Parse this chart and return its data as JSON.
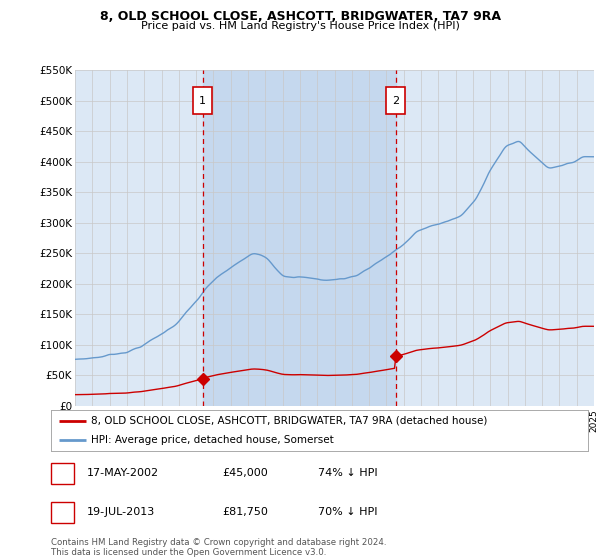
{
  "title": "8, OLD SCHOOL CLOSE, ASHCOTT, BRIDGWATER, TA7 9RA",
  "subtitle": "Price paid vs. HM Land Registry's House Price Index (HPI)",
  "legend_line1": "8, OLD SCHOOL CLOSE, ASHCOTT, BRIDGWATER, TA7 9RA (detached house)",
  "legend_line2": "HPI: Average price, detached house, Somerset",
  "footnote": "Contains HM Land Registry data © Crown copyright and database right 2024.\nThis data is licensed under the Open Government Licence v3.0.",
  "transactions": [
    {
      "num": 1,
      "date": "17-MAY-2002",
      "price": "£45,000",
      "pct": "74% ↓ HPI",
      "year": 2002.38,
      "price_val": 45000
    },
    {
      "num": 2,
      "date": "19-JUL-2013",
      "price": "£81,750",
      "pct": "70% ↓ HPI",
      "year": 2013.55,
      "price_val": 81750
    }
  ],
  "ylim": [
    0,
    550000
  ],
  "xlim": [
    1995,
    2025
  ],
  "yticks": [
    0,
    50000,
    100000,
    150000,
    200000,
    250000,
    300000,
    350000,
    400000,
    450000,
    500000,
    550000
  ],
  "ytick_labels": [
    "£0",
    "£50K",
    "£100K",
    "£150K",
    "£200K",
    "£250K",
    "£300K",
    "£350K",
    "£400K",
    "£450K",
    "£500K",
    "£550K"
  ],
  "bg_color": "#dce8f5",
  "fig_color": "#ffffff",
  "red_color": "#cc0000",
  "blue_color": "#6699cc",
  "grid_color": "#c8c8c8",
  "box_color": "#cc0000",
  "shade_color": "#c5d8ee"
}
